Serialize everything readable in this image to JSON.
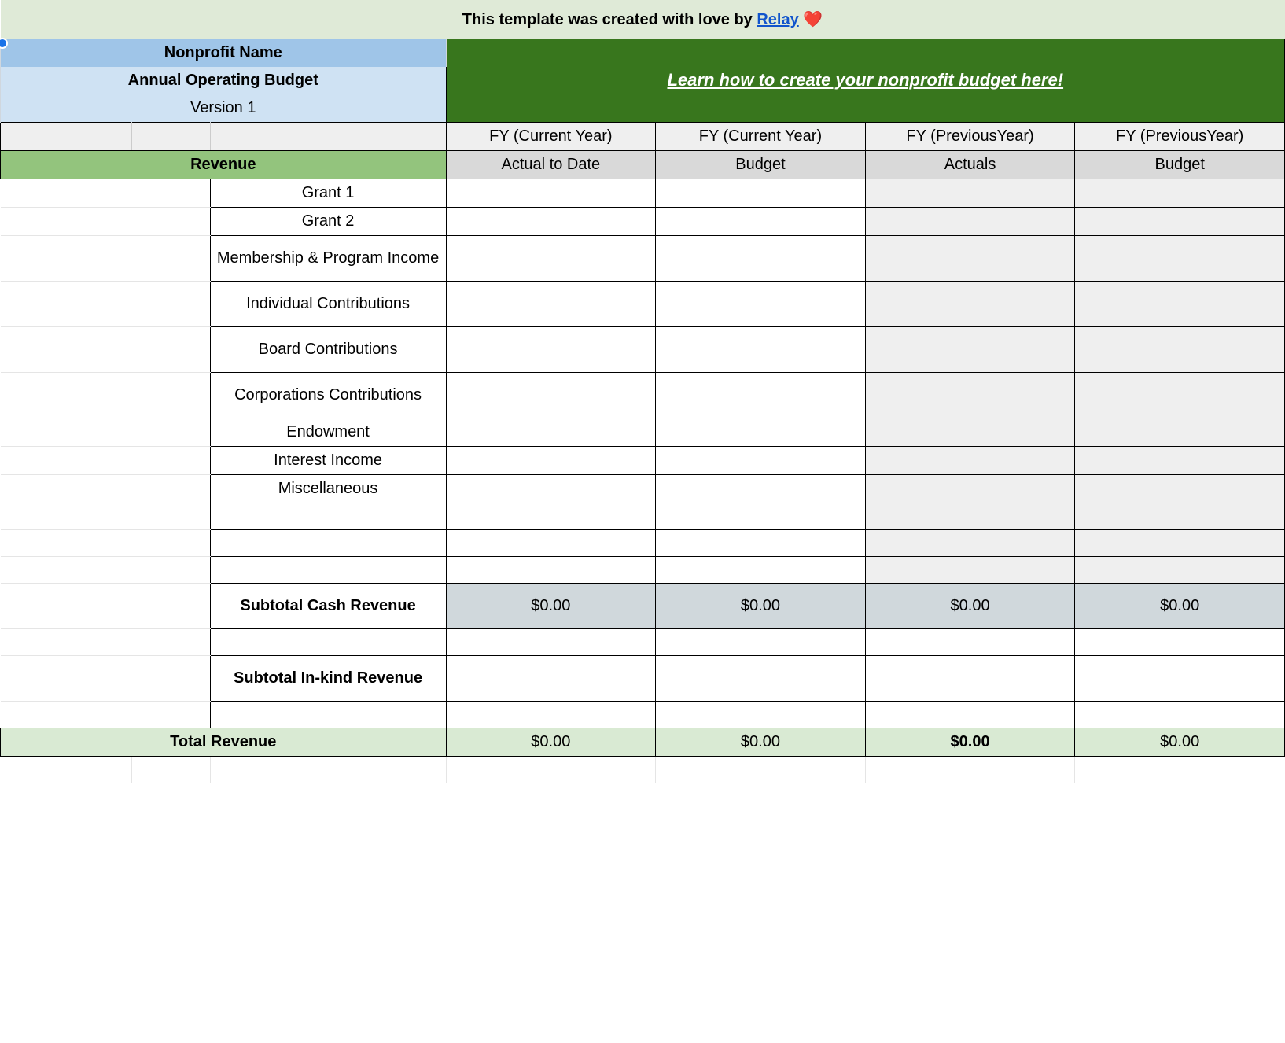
{
  "colors": {
    "banner_bg": "#dfead7",
    "link_blue": "#1155cc",
    "header_blue_dark": "#9fc5e8",
    "header_blue_light": "#cfe2f3",
    "green_block": "#38761d",
    "grey_light": "#efefef",
    "grey_mid": "#d9d9d9",
    "section_green": "#93c47d",
    "subtotal_bg": "#d0d8dc",
    "total_bg": "#d9ead3",
    "border": "#000000"
  },
  "banner": {
    "prefix": "This template was created with love by ",
    "link_text": "Relay",
    "heart": "❤️"
  },
  "header": {
    "title": "Nonprofit Name",
    "subtitle": "Annual Operating Budget",
    "version": "Version 1",
    "learn_link": "Learn how to create your nonprofit budget here! "
  },
  "columns": {
    "top": [
      "FY (Current Year)",
      "FY (Current Year)",
      "FY (PreviousYear)",
      "FY (PreviousYear)"
    ],
    "sub": [
      "Actual to Date",
      "Budget",
      "Actuals",
      "Budget"
    ]
  },
  "sections": {
    "revenue_label": "Revenue"
  },
  "rows": {
    "items": [
      "Grant 1",
      "Grant 2",
      "Membership & Program Income",
      "Individual Contributions",
      "Board Contributions",
      "Corporations Contributions",
      "Endowment",
      "Interest Income",
      "Miscellaneous",
      "",
      "",
      ""
    ],
    "subtotal_cash_label": "Subtotal Cash Revenue",
    "subtotal_cash_values": [
      "$0.00",
      "$0.00",
      "$0.00",
      "$0.00"
    ],
    "subtotal_inkind_label": "Subtotal In-kind Revenue",
    "subtotal_inkind_values": [
      "",
      "",
      "",
      ""
    ],
    "total_label": "Total Revenue",
    "total_values": [
      "$0.00",
      "$0.00",
      "$0.00",
      "$0.00"
    ]
  },
  "layout": {
    "col_widths_pct": [
      10,
      6,
      18,
      16,
      16,
      16,
      16
    ],
    "font_family": "Arial",
    "base_font_size_pt": 15
  }
}
